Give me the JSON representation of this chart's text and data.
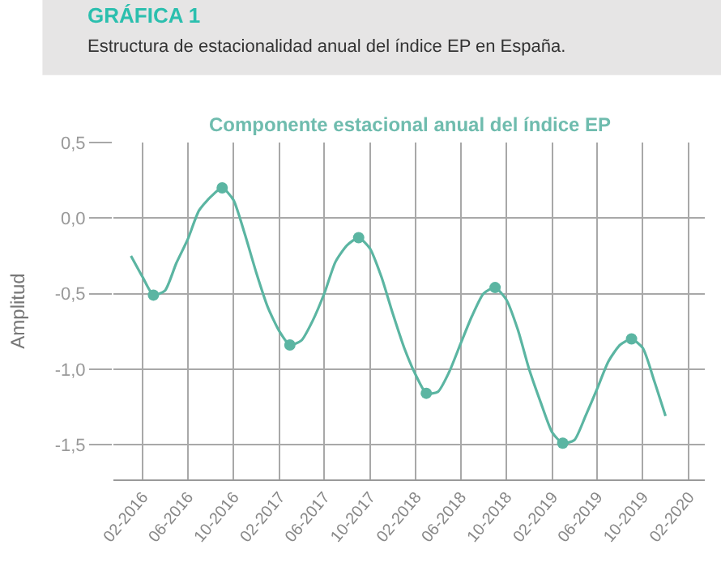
{
  "chart_data": {
    "type": "line",
    "title": "GRÁFICA 1",
    "subtitle": "Estructura de estacionalidad anual del índice EP en España.",
    "annotations": [
      "Componente estacional anual del índice EP"
    ],
    "ylabel": "Amplitud",
    "x": [
      "2016-01",
      "2016-02",
      "2016-03",
      "2016-04",
      "2016-05",
      "2016-06",
      "2016-07",
      "2016-08",
      "2016-09",
      "2016-10",
      "2016-11",
      "2016-12",
      "2017-01",
      "2017-02",
      "2017-03",
      "2017-04",
      "2017-05",
      "2017-06",
      "2017-07",
      "2017-08",
      "2017-09",
      "2017-10",
      "2017-11",
      "2017-12",
      "2018-01",
      "2018-02",
      "2018-03",
      "2018-04",
      "2018-05",
      "2018-06",
      "2018-07",
      "2018-08",
      "2018-09",
      "2018-10",
      "2018-11",
      "2018-12",
      "2019-01",
      "2019-02",
      "2019-03",
      "2019-04",
      "2019-05",
      "2019-06",
      "2019-07",
      "2019-08",
      "2019-09",
      "2019-10",
      "2019-11",
      "2019-12"
    ],
    "series": [
      {
        "color": "#5bb5a2",
        "marker": "none",
        "values": [
          -0.25,
          -0.39,
          -0.51,
          -0.48,
          -0.3,
          -0.14,
          0.05,
          0.14,
          0.2,
          0.12,
          -0.11,
          -0.36,
          -0.59,
          -0.75,
          -0.84,
          -0.81,
          -0.68,
          -0.5,
          -0.29,
          -0.18,
          -0.13,
          -0.2,
          -0.39,
          -0.63,
          -0.86,
          -1.04,
          -1.16,
          -1.15,
          -1.02,
          -0.83,
          -0.65,
          -0.5,
          -0.46,
          -0.54,
          -0.74,
          -1.0,
          -1.22,
          -1.42,
          -1.49,
          -1.47,
          -1.31,
          -1.13,
          -0.95,
          -0.84,
          -0.8,
          -0.86,
          -1.08,
          -1.31
        ]
      },
      {
        "type": "scatter",
        "color": "#5bb5a2",
        "marker": "circle",
        "x": [
          "2016-03",
          "2016-09",
          "2017-03",
          "2017-09",
          "2018-03",
          "2018-09",
          "2019-03",
          "2019-09"
        ],
        "values": [
          -0.51,
          0.2,
          -0.84,
          -0.13,
          -1.16,
          -0.46,
          -1.49,
          -0.8
        ]
      }
    ],
    "xlim": [
      "2015-11-15",
      "2020-03-15"
    ],
    "xticks": [
      {
        "value": "2016-02",
        "label": "02-2016"
      },
      {
        "value": "2016-06",
        "label": "06-2016"
      },
      {
        "value": "2016-10",
        "label": "10-2016"
      },
      {
        "value": "2017-02",
        "label": "02-2017"
      },
      {
        "value": "2017-06",
        "label": "06-2017"
      },
      {
        "value": "2017-10",
        "label": "10-2017"
      },
      {
        "value": "2018-02",
        "label": "02-2018"
      },
      {
        "value": "2018-06",
        "label": "06-2018"
      },
      {
        "value": "2018-10",
        "label": "10-2018"
      },
      {
        "value": "2019-02",
        "label": "02-2019"
      },
      {
        "value": "2019-06",
        "label": "06-2019"
      },
      {
        "value": "2019-10",
        "label": "10-2019"
      },
      {
        "value": "2020-02",
        "label": "02-2020"
      }
    ],
    "ylim": [
      -1.73,
      0.5
    ],
    "yticks": [
      {
        "value": 0.5,
        "label": "0,5"
      },
      {
        "value": 0.0,
        "label": "0,0"
      },
      {
        "value": -0.5,
        "label": "-0,5"
      },
      {
        "value": -1.0,
        "label": "-1,0"
      },
      {
        "value": -1.5,
        "label": "-1,5"
      }
    ],
    "grid": true
  }
}
